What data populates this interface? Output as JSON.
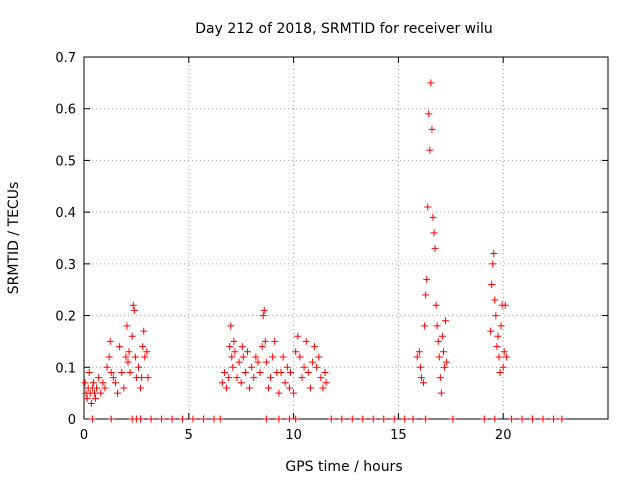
{
  "chart_data": {
    "type": "scatter",
    "title": "Day 212 of 2018, SRMTID for receiver wilu",
    "xlabel": "GPS time / hours",
    "ylabel": "SRMTID / TECUs",
    "xlim": [
      0,
      25
    ],
    "ylim": [
      0,
      0.7
    ],
    "xticks": [
      0,
      5,
      10,
      15,
      20
    ],
    "xtick_labels": [
      "0",
      "5",
      "10",
      "15",
      "20"
    ],
    "yticks": [
      0,
      0.1,
      0.2,
      0.3,
      0.4,
      0.5,
      0.6,
      0.7
    ],
    "ytick_labels": [
      "0",
      "0.1",
      "0.2",
      "0.3",
      "0.4",
      "0.5",
      "0.6",
      "0.7"
    ],
    "grid": true,
    "marker": "+",
    "color": "#ff0000",
    "series": [
      {
        "name": "SRMTID",
        "points": [
          [
            0.05,
            0.07
          ],
          [
            0.1,
            0.05
          ],
          [
            0.15,
            0.04
          ],
          [
            0.2,
            0.06
          ],
          [
            0.25,
            0.09
          ],
          [
            0.3,
            0.05
          ],
          [
            0.35,
            0.03
          ],
          [
            0.4,
            0.06
          ],
          [
            0.45,
            0.07
          ],
          [
            0.5,
            0.05
          ],
          [
            0.55,
            0.04
          ],
          [
            0.6,
            0.06
          ],
          [
            0.7,
            0.08
          ],
          [
            0.8,
            0.05
          ],
          [
            0.9,
            0.07
          ],
          [
            1.0,
            0.06
          ],
          [
            1.1,
            0.1
          ],
          [
            1.2,
            0.12
          ],
          [
            1.25,
            0.15
          ],
          [
            1.3,
            0.09
          ],
          [
            1.4,
            0.08
          ],
          [
            1.5,
            0.07
          ],
          [
            1.6,
            0.05
          ],
          [
            1.7,
            0.14
          ],
          [
            1.8,
            0.09
          ],
          [
            1.9,
            0.06
          ],
          [
            2.0,
            0.12
          ],
          [
            2.05,
            0.18
          ],
          [
            2.1,
            0.11
          ],
          [
            2.15,
            0.13
          ],
          [
            2.2,
            0.09
          ],
          [
            2.3,
            0.16
          ],
          [
            2.35,
            0.22
          ],
          [
            2.4,
            0.21
          ],
          [
            2.45,
            0.12
          ],
          [
            2.5,
            0.08
          ],
          [
            2.6,
            0.1
          ],
          [
            2.7,
            0.06
          ],
          [
            2.75,
            0.08
          ],
          [
            2.8,
            0.14
          ],
          [
            2.85,
            0.17
          ],
          [
            2.9,
            0.12
          ],
          [
            3.0,
            0.13
          ],
          [
            3.05,
            0.08
          ],
          [
            6.6,
            0.07
          ],
          [
            6.7,
            0.09
          ],
          [
            6.8,
            0.06
          ],
          [
            6.9,
            0.08
          ],
          [
            6.95,
            0.14
          ],
          [
            7.0,
            0.18
          ],
          [
            7.05,
            0.12
          ],
          [
            7.1,
            0.1
          ],
          [
            7.15,
            0.15
          ],
          [
            7.2,
            0.13
          ],
          [
            7.3,
            0.08
          ],
          [
            7.4,
            0.11
          ],
          [
            7.5,
            0.07
          ],
          [
            7.55,
            0.14
          ],
          [
            7.6,
            0.12
          ],
          [
            7.7,
            0.09
          ],
          [
            7.8,
            0.13
          ],
          [
            7.9,
            0.06
          ],
          [
            8.0,
            0.1
          ],
          [
            8.1,
            0.08
          ],
          [
            8.2,
            0.12
          ],
          [
            8.3,
            0.11
          ],
          [
            8.4,
            0.09
          ],
          [
            8.5,
            0.14
          ],
          [
            8.55,
            0.2
          ],
          [
            8.6,
            0.21
          ],
          [
            8.65,
            0.15
          ],
          [
            8.7,
            0.11
          ],
          [
            8.8,
            0.06
          ],
          [
            8.9,
            0.08
          ],
          [
            9.0,
            0.12
          ],
          [
            9.1,
            0.15
          ],
          [
            9.2,
            0.09
          ],
          [
            9.3,
            0.05
          ],
          [
            9.4,
            0.09
          ],
          [
            9.5,
            0.12
          ],
          [
            9.6,
            0.07
          ],
          [
            9.7,
            0.1
          ],
          [
            9.8,
            0.06
          ],
          [
            9.85,
            0.09
          ],
          [
            10.0,
            0.05
          ],
          [
            10.1,
            0.13
          ],
          [
            10.2,
            0.16
          ],
          [
            10.3,
            0.12
          ],
          [
            10.4,
            0.08
          ],
          [
            10.5,
            0.1
          ],
          [
            10.6,
            0.15
          ],
          [
            10.7,
            0.09
          ],
          [
            10.8,
            0.06
          ],
          [
            10.9,
            0.11
          ],
          [
            11.0,
            0.14
          ],
          [
            11.1,
            0.1
          ],
          [
            11.2,
            0.12
          ],
          [
            11.3,
            0.08
          ],
          [
            11.4,
            0.06
          ],
          [
            11.5,
            0.09
          ],
          [
            11.55,
            0.07
          ],
          [
            15.9,
            0.12
          ],
          [
            16.0,
            0.13
          ],
          [
            16.05,
            0.1
          ],
          [
            16.1,
            0.08
          ],
          [
            16.2,
            0.07
          ],
          [
            16.25,
            0.18
          ],
          [
            16.3,
            0.24
          ],
          [
            16.35,
            0.27
          ],
          [
            16.4,
            0.41
          ],
          [
            16.45,
            0.59
          ],
          [
            16.5,
            0.52
          ],
          [
            16.55,
            0.65
          ],
          [
            16.6,
            0.56
          ],
          [
            16.65,
            0.39
          ],
          [
            16.7,
            0.36
          ],
          [
            16.75,
            0.33
          ],
          [
            16.8,
            0.22
          ],
          [
            16.85,
            0.18
          ],
          [
            16.9,
            0.15
          ],
          [
            16.95,
            0.12
          ],
          [
            17.0,
            0.08
          ],
          [
            17.05,
            0.05
          ],
          [
            17.1,
            0.16
          ],
          [
            17.15,
            0.13
          ],
          [
            17.2,
            0.1
          ],
          [
            17.25,
            0.19
          ],
          [
            17.3,
            0.11
          ],
          [
            19.4,
            0.17
          ],
          [
            19.45,
            0.26
          ],
          [
            19.5,
            0.3
          ],
          [
            19.55,
            0.32
          ],
          [
            19.6,
            0.23
          ],
          [
            19.65,
            0.2
          ],
          [
            19.7,
            0.14
          ],
          [
            19.75,
            0.16
          ],
          [
            19.8,
            0.12
          ],
          [
            19.85,
            0.09
          ],
          [
            19.9,
            0.18
          ],
          [
            19.95,
            0.22
          ],
          [
            20.0,
            0.1
          ],
          [
            20.05,
            0.13
          ],
          [
            20.1,
            0.22
          ],
          [
            20.15,
            0.12
          ],
          [
            0.4,
            0
          ],
          [
            1.3,
            0
          ],
          [
            2.3,
            0
          ],
          [
            2.5,
            0
          ],
          [
            2.7,
            0
          ],
          [
            3.2,
            0
          ],
          [
            3.7,
            0
          ],
          [
            4.2,
            0
          ],
          [
            4.7,
            0
          ],
          [
            5.2,
            0
          ],
          [
            5.7,
            0
          ],
          [
            6.2,
            0
          ],
          [
            6.5,
            0
          ],
          [
            8.7,
            0
          ],
          [
            9.3,
            0
          ],
          [
            9.8,
            0
          ],
          [
            10.1,
            0
          ],
          [
            11.8,
            0
          ],
          [
            12.3,
            0
          ],
          [
            12.8,
            0
          ],
          [
            13.3,
            0
          ],
          [
            13.8,
            0
          ],
          [
            14.3,
            0
          ],
          [
            14.8,
            0
          ],
          [
            15.3,
            0
          ],
          [
            15.7,
            0
          ],
          [
            16.3,
            0
          ],
          [
            17.6,
            0
          ],
          [
            19.1,
            0
          ],
          [
            19.6,
            0
          ],
          [
            20.4,
            0
          ],
          [
            20.9,
            0
          ],
          [
            21.4,
            0
          ],
          [
            21.9,
            0
          ],
          [
            22.4,
            0
          ],
          [
            22.8,
            0
          ]
        ]
      }
    ]
  }
}
